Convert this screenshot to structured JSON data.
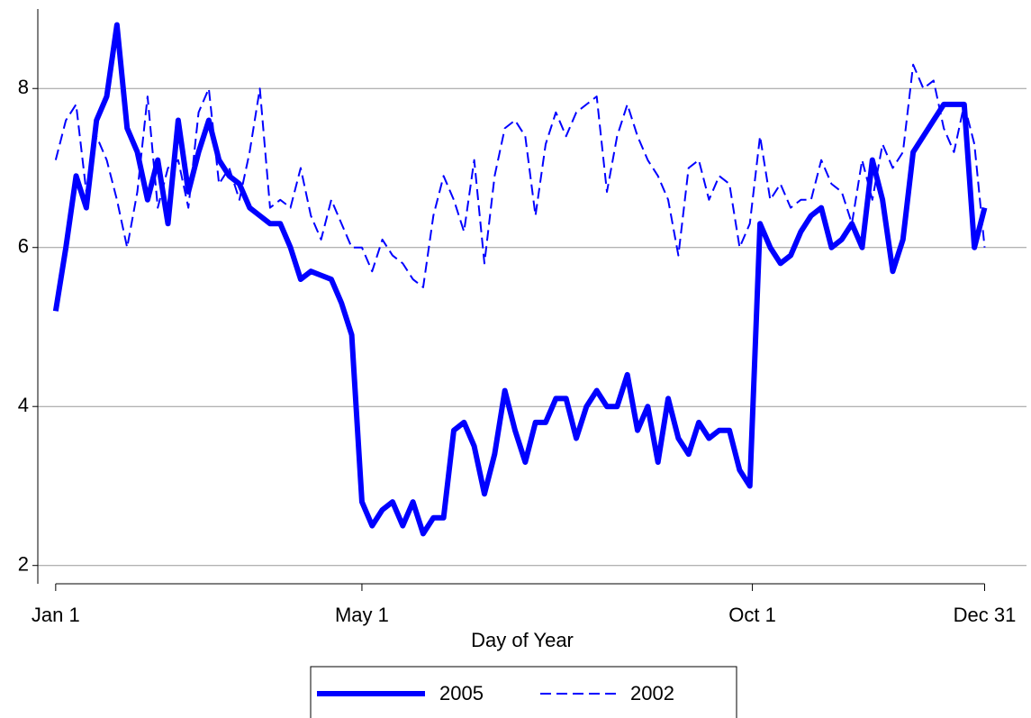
{
  "chart_data": {
    "type": "line",
    "xlabel": "Day of Year",
    "x": [
      1,
      5,
      9,
      13,
      17,
      21,
      25,
      29,
      33,
      37,
      41,
      45,
      49,
      53,
      57,
      61,
      65,
      69,
      73,
      77,
      81,
      85,
      89,
      93,
      97,
      101,
      105,
      109,
      113,
      117,
      121,
      125,
      129,
      133,
      137,
      141,
      145,
      149,
      153,
      157,
      161,
      165,
      169,
      173,
      177,
      181,
      185,
      189,
      193,
      197,
      201,
      205,
      209,
      213,
      217,
      221,
      225,
      229,
      233,
      237,
      241,
      245,
      249,
      253,
      257,
      261,
      265,
      269,
      273,
      277,
      281,
      285,
      289,
      293,
      297,
      301,
      305,
      309,
      313,
      317,
      321,
      325,
      329,
      333,
      337,
      341,
      345,
      349,
      353,
      357,
      361,
      365
    ],
    "series": [
      {
        "name": "2005",
        "color": "#0000ff",
        "style": "solid",
        "values": [
          5.2,
          6.0,
          6.9,
          6.5,
          7.6,
          7.9,
          8.8,
          7.5,
          7.2,
          6.6,
          7.1,
          6.3,
          7.6,
          6.7,
          7.2,
          7.6,
          7.1,
          6.9,
          6.8,
          6.5,
          6.4,
          6.3,
          6.3,
          6.0,
          5.6,
          5.7,
          5.65,
          5.6,
          5.3,
          4.9,
          2.8,
          2.5,
          2.7,
          2.8,
          2.5,
          2.8,
          2.4,
          2.6,
          2.6,
          3.7,
          3.8,
          3.5,
          2.9,
          3.4,
          4.2,
          3.7,
          3.3,
          3.8,
          3.8,
          4.1,
          4.1,
          3.6,
          4.0,
          4.2,
          4.0,
          4.0,
          4.4,
          3.7,
          4.0,
          3.3,
          4.1,
          3.6,
          3.4,
          3.8,
          3.6,
          3.7,
          3.7,
          3.2,
          3.0,
          6.3,
          6.0,
          5.8,
          5.9,
          6.2,
          6.4,
          6.5,
          6.0,
          6.1,
          6.3,
          6.0,
          7.1,
          6.6,
          5.7,
          6.1,
          7.2,
          7.4,
          7.6,
          7.8,
          7.8,
          7.8,
          6.0,
          6.5
        ]
      },
      {
        "name": "2002",
        "color": "#0000ff",
        "style": "dashed",
        "values": [
          7.1,
          7.6,
          7.8,
          6.7,
          7.4,
          7.1,
          6.6,
          6.0,
          6.7,
          7.9,
          6.5,
          7.0,
          7.1,
          6.5,
          7.7,
          8.0,
          6.8,
          7.0,
          6.6,
          7.2,
          8.0,
          6.5,
          6.6,
          6.5,
          7.0,
          6.4,
          6.1,
          6.6,
          6.3,
          6.0,
          6.0,
          5.7,
          6.1,
          5.9,
          5.8,
          5.6,
          5.5,
          6.4,
          6.9,
          6.6,
          6.2,
          7.1,
          5.8,
          6.9,
          7.5,
          7.6,
          7.4,
          6.4,
          7.3,
          7.7,
          7.4,
          7.7,
          7.8,
          7.9,
          6.7,
          7.4,
          7.8,
          7.4,
          7.1,
          6.9,
          6.6,
          5.9,
          7.0,
          7.1,
          6.6,
          6.9,
          6.8,
          6.0,
          6.3,
          7.4,
          6.6,
          6.8,
          6.5,
          6.6,
          6.6,
          7.1,
          6.8,
          6.7,
          6.3,
          7.1,
          6.6,
          7.3,
          7.0,
          7.2,
          8.3,
          8.0,
          8.1,
          7.5,
          7.2,
          7.8,
          7.3,
          6.0
        ]
      }
    ],
    "xlim": [
      -6,
      380
    ],
    "xticks": [
      {
        "value": 1,
        "label": "Jan 1"
      },
      {
        "value": 121,
        "label": "May 1"
      },
      {
        "value": 274,
        "label": "Oct 1"
      },
      {
        "value": 365,
        "label": "Dec 31"
      }
    ],
    "ylim": [
      1.77,
      9.0
    ],
    "yticks": [
      2,
      4,
      6,
      8
    ],
    "grid": true,
    "legend": "bottom"
  }
}
